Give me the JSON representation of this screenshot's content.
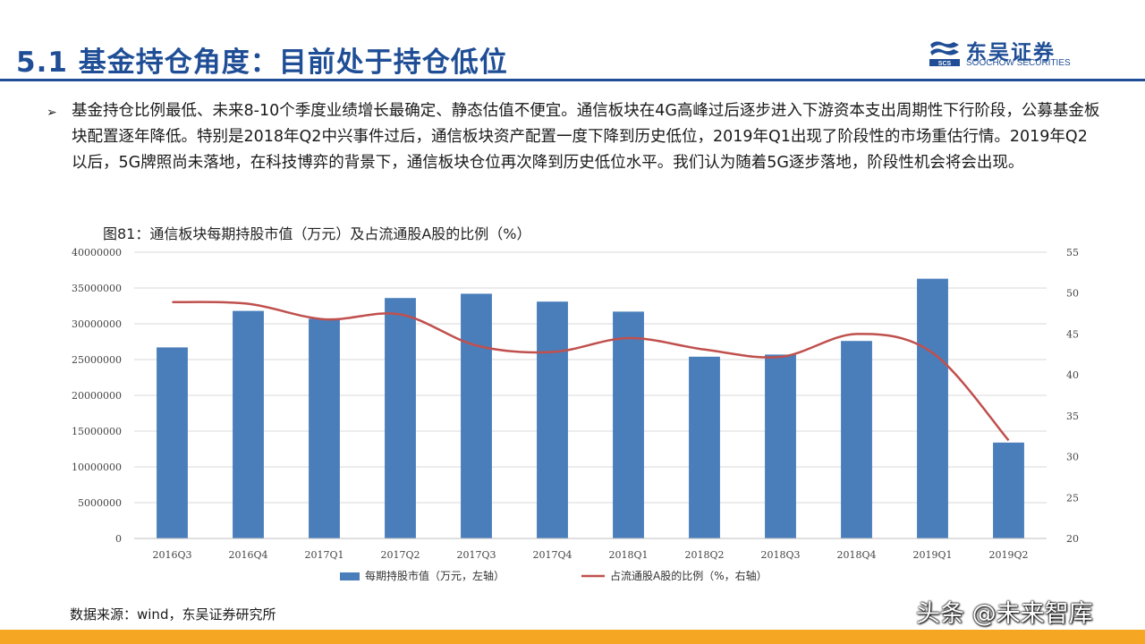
{
  "header": {
    "title": "5.1 基金持仓角度：目前处于持仓低位",
    "logo_cn": "东吴证券",
    "logo_en": "SOOCHOW SECURITIES"
  },
  "body": {
    "bullet_glyph": "➢",
    "paragraph": "基金持仓比例最低、未来8-10个季度业绩增长最确定、静态估值不便宜。通信板块在4G高峰过后逐步进入下游资本支出周期性下行阶段，公募基金板块配置逐年降低。特别是2018年Q2中兴事件过后，通信板块资产配置一度下降到历史低位，2019年Q1出现了阶段性的市场重估行情。2019年Q2以后，5G牌照尚未落地，在科技博弈的背景下，通信板块仓位再次降到历史低位水平。我们认为随着5G逐步落地，阶段性机会将会出现。"
  },
  "figure_title": "图81：通信板块每期持股市值（万元）及占流通股A股的比例（%）",
  "chart_data": {
    "type": "bar",
    "categories": [
      "2016Q3",
      "2016Q4",
      "2017Q1",
      "2017Q2",
      "2017Q3",
      "2017Q4",
      "2018Q1",
      "2018Q2",
      "2018Q3",
      "2018Q4",
      "2019Q1",
      "2019Q2"
    ],
    "series": [
      {
        "name": "每期持股市值（万元，左轴）",
        "type": "bar",
        "axis": "left",
        "color": "#4a7ebb",
        "values": [
          26700000,
          31800000,
          30700000,
          33600000,
          34200000,
          33100000,
          31700000,
          25400000,
          25700000,
          27600000,
          36300000,
          13400000
        ]
      },
      {
        "name": "占流通股A股的比例（%，右轴）",
        "type": "line",
        "axis": "right",
        "color": "#c0504d",
        "values": [
          48.9,
          48.7,
          46.8,
          47.4,
          43.6,
          42.8,
          44.5,
          43.1,
          42.2,
          45.0,
          42.7,
          32.0
        ]
      }
    ],
    "y_left": {
      "min": 0,
      "max": 40000000,
      "step": 5000000,
      "ticks": [
        "0",
        "5000000",
        "10000000",
        "15000000",
        "20000000",
        "25000000",
        "30000000",
        "35000000",
        "40000000"
      ]
    },
    "y_right": {
      "min": 20,
      "max": 55,
      "step": 5,
      "ticks": [
        "20",
        "25",
        "30",
        "35",
        "40",
        "45",
        "50",
        "55"
      ]
    },
    "grid": true,
    "legend_position": "bottom"
  },
  "source": "数据来源：wind，东吴证券研究所",
  "watermark": "头条 @未来智库",
  "colors": {
    "brand_blue": "#1f4e96",
    "accent_orange": "#f5a623",
    "bar": "#4a7ebb",
    "line": "#c0504d"
  }
}
